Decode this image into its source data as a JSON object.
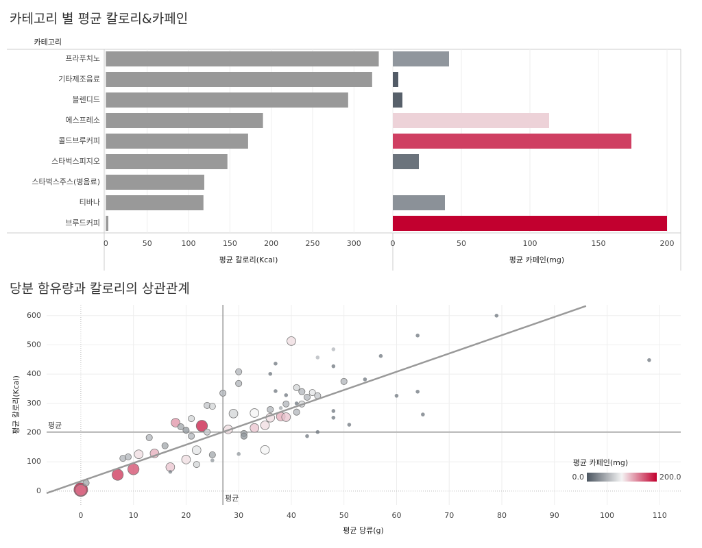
{
  "chart_data": [
    {
      "type": "bar",
      "title": "카테고리 별 평균 칼로리&카페인",
      "category_header": "카테고리",
      "categories": [
        "프라푸치노",
        "기타제조음료",
        "블렌디드",
        "에스프레소",
        "콜드브루커피",
        "스타벅스피지오",
        "스타벅스주스(병음료)",
        "티바나",
        "브루드커피"
      ],
      "series": [
        {
          "name": "평균 칼로리(Kcal)",
          "color": "#999999",
          "values": [
            330,
            322,
            293,
            190,
            172,
            147,
            119,
            118,
            3
          ],
          "xlim": [
            -2,
            347
          ],
          "xticks": [
            0,
            50,
            100,
            150,
            200,
            250,
            300
          ]
        },
        {
          "name": "평균 카페인(mg)",
          "values": [
            41,
            4,
            7,
            114,
            174,
            19,
            0,
            38,
            200
          ],
          "xlim": [
            0,
            210
          ],
          "xticks": [
            0,
            50,
            100,
            150,
            200
          ]
        }
      ],
      "grid": true
    },
    {
      "type": "scatter",
      "title": "당분 함유량과 칼로리의 상관관계",
      "xlabel": "평균 당류(g)",
      "ylabel": "평균 칼로리(Kcal)",
      "xlim": [
        -6.5,
        114
      ],
      "ylim": [
        -47,
        637
      ],
      "xticks": [
        0,
        10,
        20,
        30,
        40,
        50,
        60,
        70,
        80,
        90,
        100,
        110
      ],
      "yticks": [
        0,
        100,
        200,
        300,
        400,
        500,
        600
      ],
      "grid": true,
      "x": [
        0,
        0,
        1,
        7,
        10,
        11,
        8,
        9,
        13,
        14,
        16,
        17,
        17,
        18,
        19,
        20,
        21,
        20,
        21,
        22,
        22,
        23,
        24,
        24,
        25,
        25,
        25,
        27,
        28,
        29,
        30,
        30,
        30,
        31,
        31,
        33,
        33,
        35,
        35,
        36,
        36,
        38,
        39,
        40,
        39,
        41,
        42,
        43,
        44,
        45,
        45,
        42,
        48,
        50,
        41,
        38,
        79,
        108,
        64,
        64,
        60,
        65,
        57,
        54,
        48,
        48,
        51,
        45,
        43,
        37,
        36,
        48,
        39,
        41,
        37
      ],
      "y": [
        5,
        3,
        28,
        56,
        75,
        126,
        112,
        117,
        183,
        129,
        155,
        82,
        66,
        234,
        220,
        108,
        248,
        208,
        188,
        140,
        91,
        223,
        293,
        202,
        290,
        124,
        105,
        335,
        211,
        265,
        408,
        368,
        127,
        197,
        188,
        267,
        216,
        225,
        141,
        279,
        251,
        255,
        253,
        513,
        298,
        270,
        340,
        321,
        337,
        326,
        457,
        298,
        485,
        375,
        354,
        284,
        600,
        448,
        532,
        340,
        326,
        262,
        462,
        382,
        274,
        251,
        227,
        202,
        188,
        436,
        401,
        427,
        328,
        300,
        342
      ],
      "size": [
        5,
        4,
        2,
        4,
        4,
        3,
        2,
        2,
        2,
        3,
        2,
        3,
        1,
        3,
        2,
        3,
        2,
        2,
        2,
        3,
        2,
        4,
        2,
        2,
        2,
        2,
        1,
        2,
        3,
        3,
        2,
        2,
        1,
        2,
        2,
        3,
        3,
        3,
        3,
        2,
        3,
        3,
        3,
        3,
        2,
        2,
        2,
        2,
        2,
        2,
        1,
        2,
        1,
        2,
        2,
        1,
        1,
        1,
        1,
        1,
        1,
        1,
        1,
        1,
        1,
        1,
        1,
        1,
        1,
        1,
        1,
        1,
        1,
        1,
        1
      ],
      "caffeine": [
        200,
        150,
        50,
        180,
        170,
        110,
        60,
        60,
        60,
        130,
        50,
        120,
        30,
        140,
        50,
        110,
        80,
        40,
        60,
        90,
        80,
        190,
        70,
        70,
        80,
        50,
        40,
        60,
        110,
        80,
        60,
        60,
        40,
        50,
        40,
        100,
        120,
        110,
        100,
        60,
        110,
        130,
        120,
        110,
        60,
        60,
        60,
        60,
        90,
        70,
        60,
        80,
        60,
        60,
        80,
        50,
        20,
        20,
        20,
        20,
        20,
        20,
        20,
        20,
        20,
        20,
        20,
        20,
        20,
        20,
        20,
        20,
        20,
        20,
        20
      ],
      "trend_line": {
        "x": [
          -6.5,
          96
        ],
        "y": [
          -7,
          633
        ]
      },
      "reference_lines": [
        {
          "axis": "x",
          "value": 27,
          "label": "평균"
        },
        {
          "axis": "y",
          "value": 202,
          "label": "평균"
        }
      ],
      "color_legend": {
        "title": "평균 카페인(mg)",
        "colors": [
          "#4b5560",
          "#f4f4f4",
          "#c2002f"
        ],
        "ticks": [
          {
            "value": 0,
            "label": "0.0"
          },
          {
            "value": 200,
            "label": "200.0"
          }
        ]
      }
    }
  ]
}
